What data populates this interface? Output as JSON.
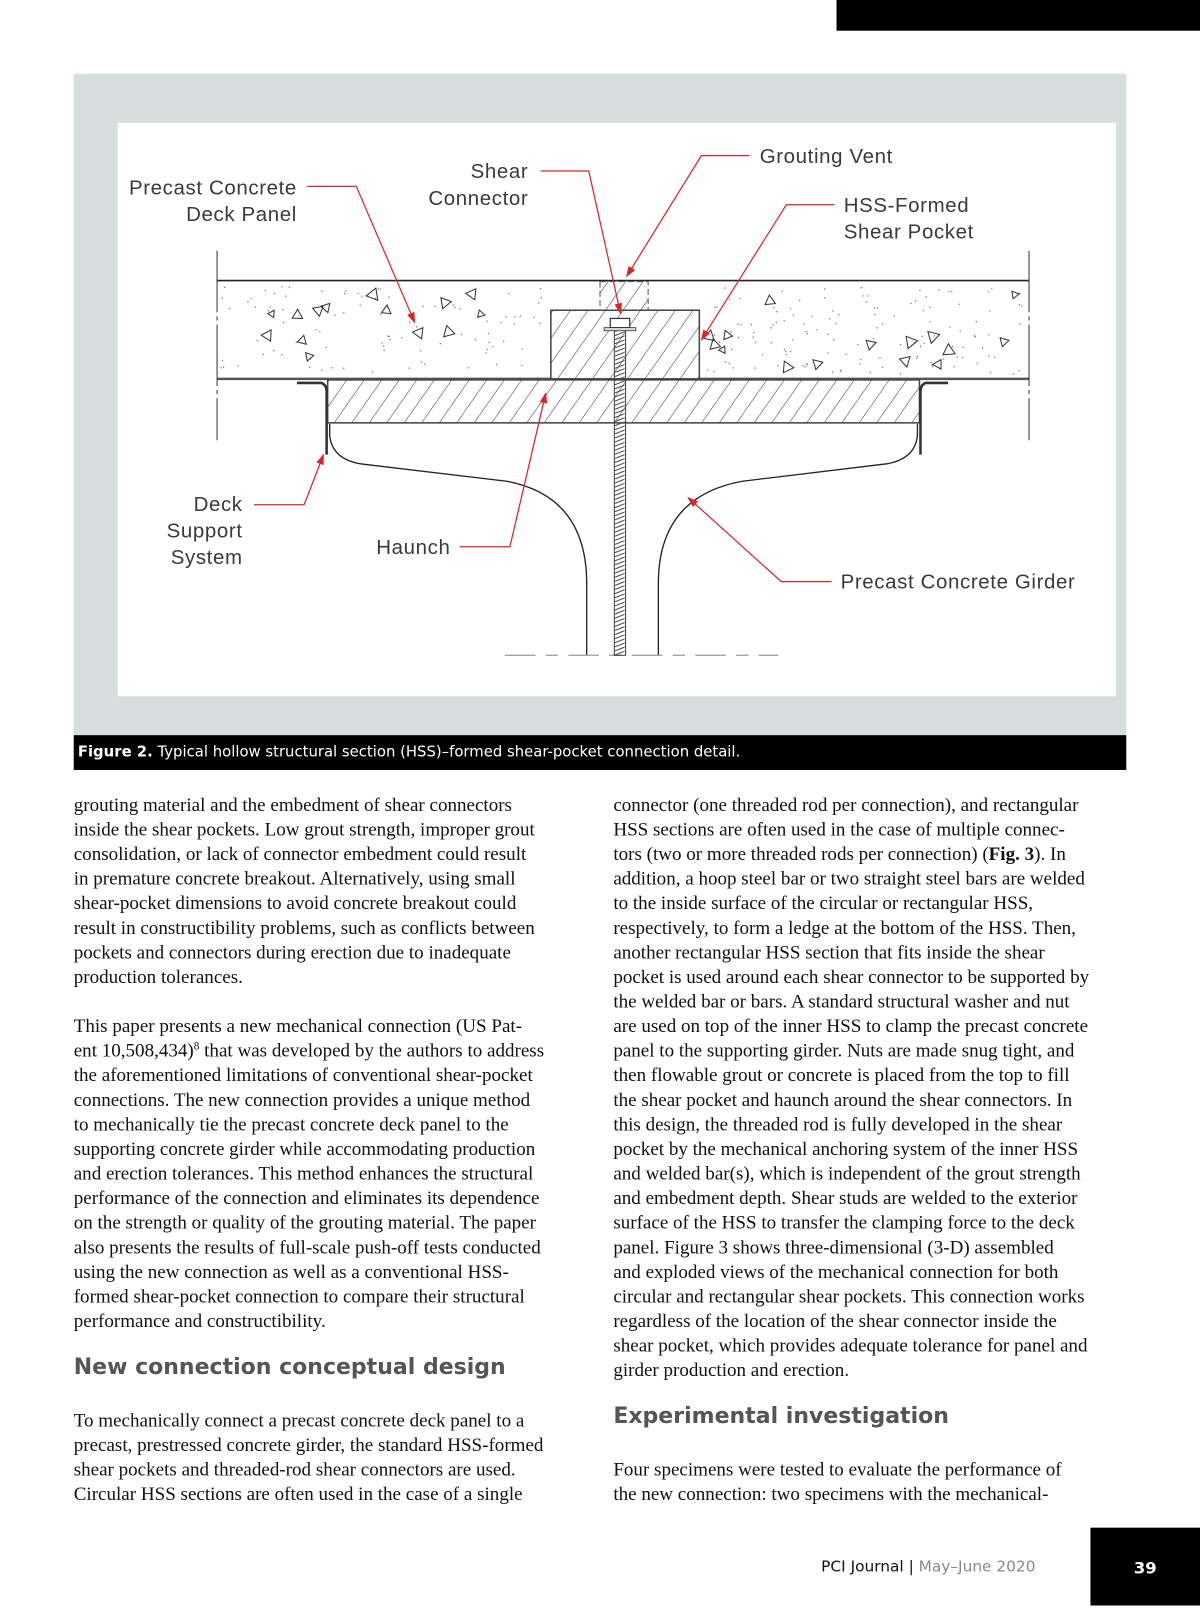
{
  "figure": {
    "caption_label": "Figure 2.",
    "caption_text": " Typical hollow structural section (HSS)–formed shear-pocket connection detail.",
    "labels": {
      "deck_panel_1": "Precast Concrete",
      "deck_panel_2": "Deck Panel",
      "shear_connector_1": "Shear",
      "shear_connector_2": "Connector",
      "grouting_vent": "Grouting Vent",
      "pocket_1": "HSS-Formed",
      "pocket_2": "Shear Pocket",
      "support_1": "Deck",
      "support_2": "Support",
      "support_3": "System",
      "haunch": "Haunch",
      "girder": "Precast Concrete Girder"
    },
    "leader_color": "#d9262a",
    "panel_bg": "#d7dfde"
  },
  "left_column": {
    "para1": [
      "grouting material and the embedment of shear connectors",
      "inside the shear pockets. Low grout strength, improper grout",
      "consolidation, or lack of connector embedment could result",
      "in premature concrete breakout. Alternatively, using small",
      "shear-pocket dimensions to avoid concrete breakout could",
      "result in constructibility problems, such as conflicts between",
      "pockets and connectors during erection due to inadequate",
      "production tolerances."
    ],
    "para2": [
      "This paper presents a new mechanical connection (US Pat-",
      [
        {
          "t": "ent 10,508,434)"
        },
        {
          "t": "8",
          "sup": true
        },
        {
          "t": " that was developed by the authors to address"
        }
      ],
      "the aforementioned limitations of conventional shear-pocket",
      "connections. The new connection provides a unique method",
      "to mechanically tie the precast concrete deck panel to the",
      "supporting concrete girder while accommodating production",
      "and erection tolerances. This method enhances the structural",
      "performance of the connection and eliminates its dependence",
      "on the strength or quality of the grouting material. The paper",
      "also presents the results of full-scale push-off tests conducted",
      "using the new connection as well as a conventional HSS-",
      "formed shear-pocket connection to compare their structural",
      "performance and constructibility."
    ],
    "heading": "New connection conceptual design",
    "para3": [
      "To mechanically connect a precast concrete deck panel to a",
      "precast, prestressed concrete girder, the standard HSS-formed",
      "shear pockets and threaded-rod shear connectors are used.",
      "Circular HSS sections are often used in the case of a single"
    ]
  },
  "right_column": {
    "para1": [
      "connector (one threaded rod per connection), and rectangular",
      "HSS sections are often used in the case of multiple connec-",
      [
        {
          "t": "tors (two or more threaded rods per connection) ("
        },
        {
          "t": "Fig. 3",
          "b": true
        },
        {
          "t": "). In"
        }
      ],
      "addition, a hoop steel bar or two straight steel bars are welded",
      "to the inside surface of the circular or rectangular HSS,",
      "respectively, to form a ledge at the bottom of the HSS. Then,",
      "another rectangular HSS section that fits inside the shear",
      "pocket is used around each shear connector to be supported by",
      "the welded bar or bars. A standard structural washer and nut",
      "are used on top of the inner HSS to clamp the precast concrete",
      "panel to the supporting girder. Nuts are made snug tight, and",
      "then flowable grout or concrete is placed from the top to fill",
      "the shear pocket and haunch around the shear connectors. In",
      "this design, the threaded rod is fully developed in the shear",
      "pocket by the mechanical anchoring system of the inner HSS",
      "and welded bar(s), which is independent of the grout strength",
      "and embedment depth. Shear studs are welded to the exterior",
      "surface of the HSS to transfer the clamping force to the deck",
      "panel. Figure 3 shows three-dimensional (3-D) assembled",
      "and exploded views of the mechanical connection for both",
      "circular and rectangular shear pockets. This connection works",
      "regardless of the location of the shear connector inside the",
      "shear pocket, which provides adequate tolerance for panel and",
      "girder production and erection."
    ],
    "heading": "Experimental investigation",
    "para2": [
      "Four specimens were tested to evaluate the performance of",
      "the new connection: two specimens with the mechanical-"
    ]
  },
  "footer": {
    "journal": "PCI Journal",
    "separator": " | ",
    "date": "May–June 2020",
    "page_number": "39"
  }
}
